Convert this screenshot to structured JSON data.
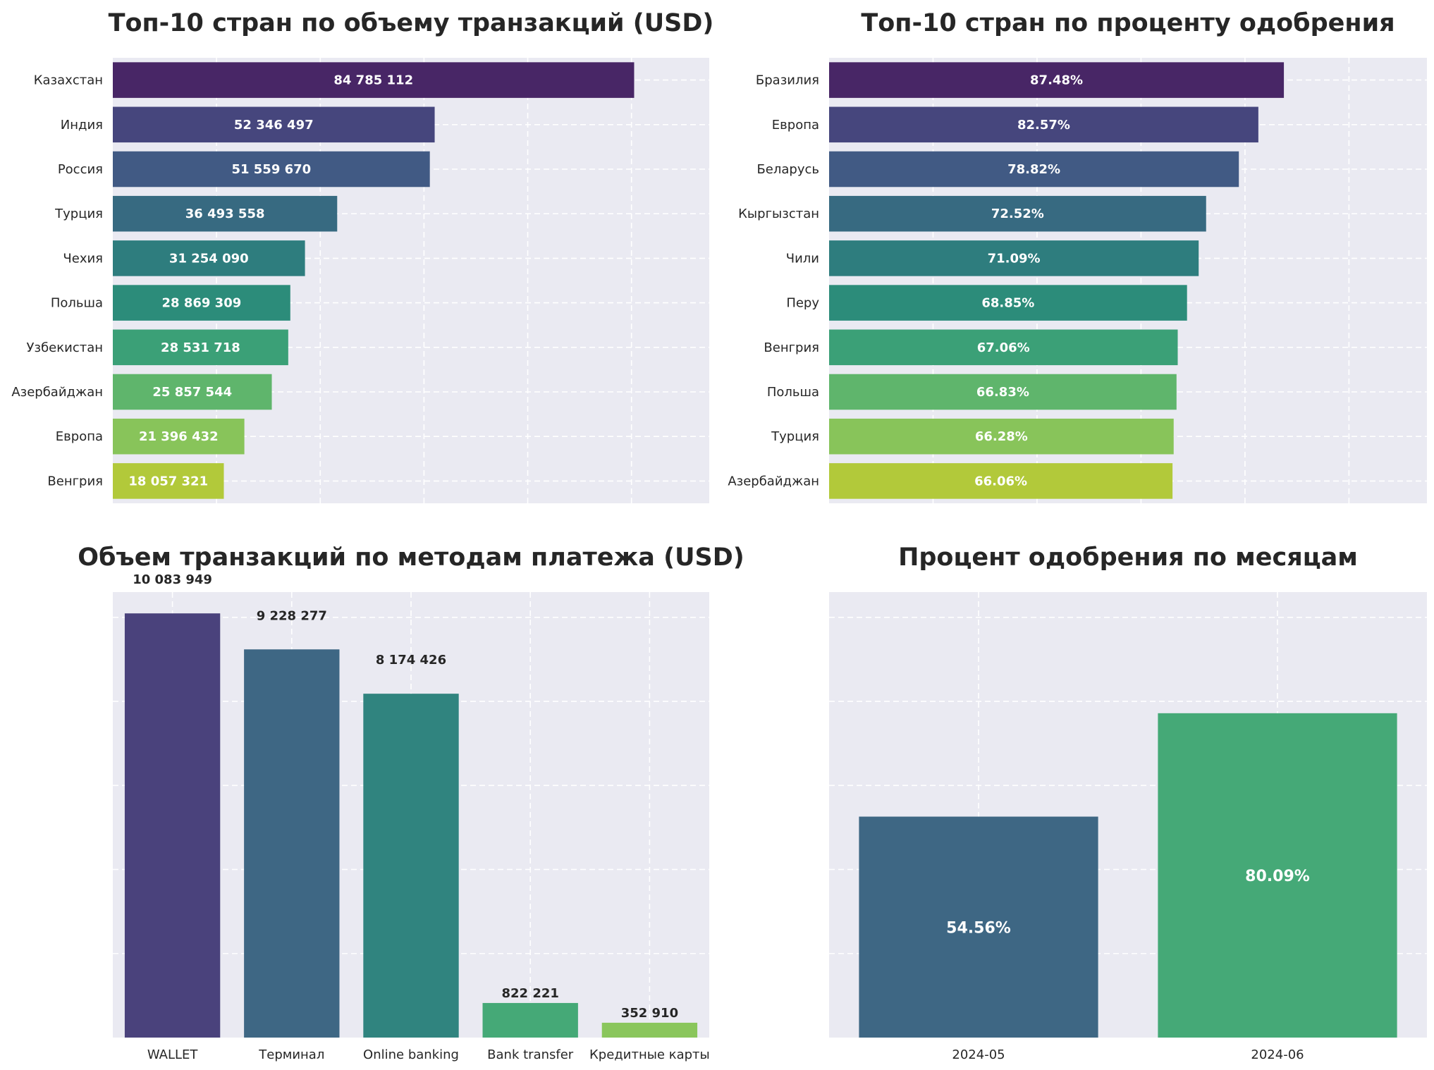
{
  "colors": {
    "panel_bg": "#eaeaf2",
    "viridis10": [
      "#482666",
      "#46467d",
      "#415a84",
      "#376a81",
      "#2e7d7e",
      "#2c8c7a",
      "#3ba077",
      "#5fb56c",
      "#88c45a",
      "#b2c93a"
    ],
    "viridis5": [
      "#4a427c",
      "#3e6784",
      "#30847f",
      "#45a977",
      "#8ac65c"
    ],
    "viridis2": [
      "#3e6784",
      "#45a977"
    ]
  },
  "chart_data": [
    {
      "type": "bar",
      "orientation": "horizontal",
      "title": "Топ-10 стран по объему транзакций (USD)",
      "categories": [
        "Казахстан",
        "Индия",
        "Россия",
        "Турция",
        "Чехия",
        "Польша",
        "Узбекистан",
        "Азербайджан",
        "Европа",
        "Венгрия"
      ],
      "values": [
        84785112,
        52346497,
        51559670,
        36493558,
        31254090,
        28869309,
        28531718,
        25857544,
        21396432,
        18057321
      ],
      "value_labels": [
        "84 785 112",
        "52 346 497",
        "51 559 670",
        "36 493 558",
        "31 254 090",
        "28 869 309",
        "28 531 718",
        "25 857 544",
        "21 396 432",
        "18 057 321"
      ],
      "xlim": [
        0,
        97000000
      ],
      "grid": true
    },
    {
      "type": "bar",
      "orientation": "horizontal",
      "title": "Топ-10 стран по проценту одобрения",
      "categories": [
        "Бразилия",
        "Европа",
        "Беларусь",
        "Кыргызстан",
        "Чили",
        "Перу",
        "Венгрия",
        "Польша",
        "Турция",
        "Азербайджан"
      ],
      "values": [
        87.48,
        82.57,
        78.82,
        72.52,
        71.09,
        68.85,
        67.06,
        66.83,
        66.28,
        66.06
      ],
      "value_labels": [
        "87.48%",
        "82.57%",
        "78.82%",
        "72.52%",
        "71.09%",
        "68.85%",
        "67.06%",
        "66.83%",
        "66.28%",
        "66.06%"
      ],
      "xlim": [
        0,
        115
      ],
      "grid": true
    },
    {
      "type": "bar",
      "orientation": "vertical",
      "title": "Объем транзакций по методам платежа (USD)",
      "categories": [
        "WALLET",
        "Терминал",
        "Online banking",
        "Bank transfer",
        "Кредитные карты"
      ],
      "values": [
        10083949,
        9228277,
        8174426,
        822221,
        352910
      ],
      "value_labels": [
        "10 083 949",
        "9 228 277",
        "8 174 426",
        "822 221",
        "352 910"
      ],
      "ylim": [
        0,
        10590000
      ],
      "grid": true
    },
    {
      "type": "bar",
      "orientation": "vertical",
      "title": "Процент одобрения по месяцам",
      "categories": [
        "2024-05",
        "2024-06"
      ],
      "values": [
        54.56,
        80.09
      ],
      "value_labels": [
        "54.56%",
        "80.09%"
      ],
      "ylim": [
        0,
        110
      ],
      "grid": true
    }
  ]
}
